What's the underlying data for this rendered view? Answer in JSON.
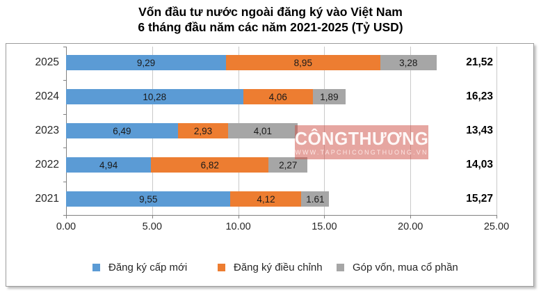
{
  "title": {
    "line1": "Vốn đầu tư nước ngoài đăng ký vào Việt Nam",
    "line2": "6 tháng đầu năm các năm 2021-2025 (Tỷ USD)"
  },
  "watermark": {
    "text": "CÔNGTHƯƠNG",
    "subtext": "WWW.TAPCHICONGTHUONG.VN",
    "color": "#CE4D44"
  },
  "chart_data": {
    "type": "bar",
    "orientation": "horizontal",
    "stacked": true,
    "title": "Vốn đầu tư nước ngoài đăng ký vào Việt Nam 6 tháng đầu năm các năm 2021-2025 (Tỷ USD)",
    "categories": [
      "2025",
      "2024",
      "2023",
      "2022",
      "2021"
    ],
    "series": [
      {
        "name": "Đăng ký cấp mới",
        "color": "#5B9BD5",
        "values": [
          9.29,
          10.28,
          6.49,
          4.94,
          9.55
        ],
        "labels": [
          "9,29",
          "10,28",
          "6,49",
          "4,94",
          "9,55"
        ]
      },
      {
        "name": "Đăng ký điều chỉnh",
        "color": "#ED7D31",
        "values": [
          8.95,
          4.06,
          2.93,
          6.82,
          4.12
        ],
        "labels": [
          "8,95",
          "4,06",
          "2,93",
          "6,82",
          "4,12"
        ]
      },
      {
        "name": "Góp vốn, mua cổ phần",
        "color": "#A6A6A6",
        "values": [
          3.28,
          1.89,
          4.01,
          2.27,
          1.61
        ],
        "labels": [
          "3,28",
          "1,89",
          "4,01",
          "2,27",
          "1.61"
        ]
      }
    ],
    "totals": [
      "21,52",
      "16,23",
      "13,43",
      "14,03",
      "15,27"
    ],
    "total_values": [
      21.52,
      16.23,
      13.43,
      14.03,
      15.27
    ],
    "x_ticks": [
      "0.00",
      "5.00",
      "10.00",
      "15.00",
      "20.00",
      "25.00"
    ],
    "xlim": [
      0,
      25
    ],
    "xlabel": "",
    "ylabel": "",
    "grid": true,
    "legend_position": "bottom"
  }
}
